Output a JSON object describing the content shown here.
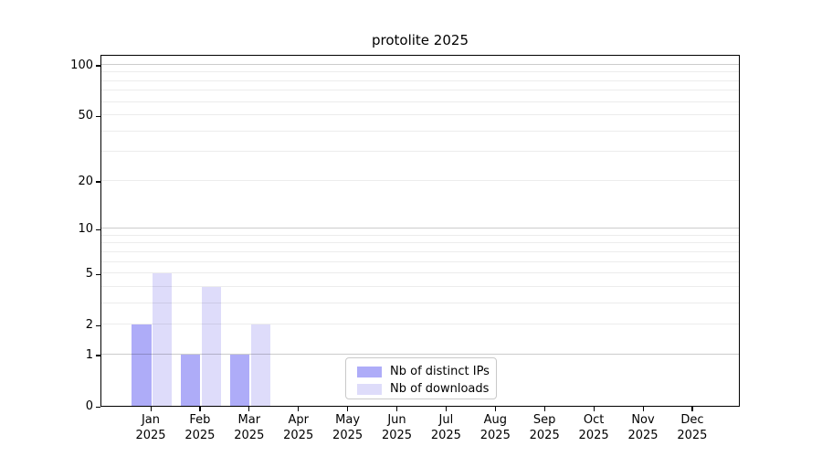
{
  "chart_data": {
    "type": "bar",
    "title": "protolite 2025",
    "categories": [
      "Jan",
      "Feb",
      "Mar",
      "Apr",
      "May",
      "Jun",
      "Jul",
      "Aug",
      "Sep",
      "Oct",
      "Nov",
      "Dec"
    ],
    "x_tick_year": "2025",
    "series": [
      {
        "name": "Nb of distinct IPs",
        "color": "#aeacf8",
        "values": [
          2,
          1,
          1,
          0,
          0,
          0,
          0,
          0,
          0,
          0,
          0,
          0
        ]
      },
      {
        "name": "Nb of downloads",
        "color": "#dedcfa",
        "values": [
          5,
          4,
          2,
          0,
          0,
          0,
          0,
          0,
          0,
          0,
          0,
          0
        ]
      }
    ],
    "y_axis": {
      "scale": "log1p",
      "ylim": [
        0,
        116
      ],
      "tick_values": [
        0,
        1,
        2,
        5,
        10,
        20,
        50,
        100
      ],
      "major_gridlines": [
        1,
        10,
        100
      ],
      "minor_gridlines": [
        2,
        3,
        4,
        5,
        6,
        7,
        8,
        9,
        20,
        30,
        40,
        50,
        60,
        70,
        80,
        90
      ]
    },
    "xlabel": "",
    "ylabel": "",
    "grid": true,
    "legend": {
      "position": "lower center",
      "entries": [
        "Nb of distinct IPs",
        "Nb of downloads"
      ]
    },
    "colors": {
      "background": "#ffffff",
      "spine": "#000000"
    }
  }
}
